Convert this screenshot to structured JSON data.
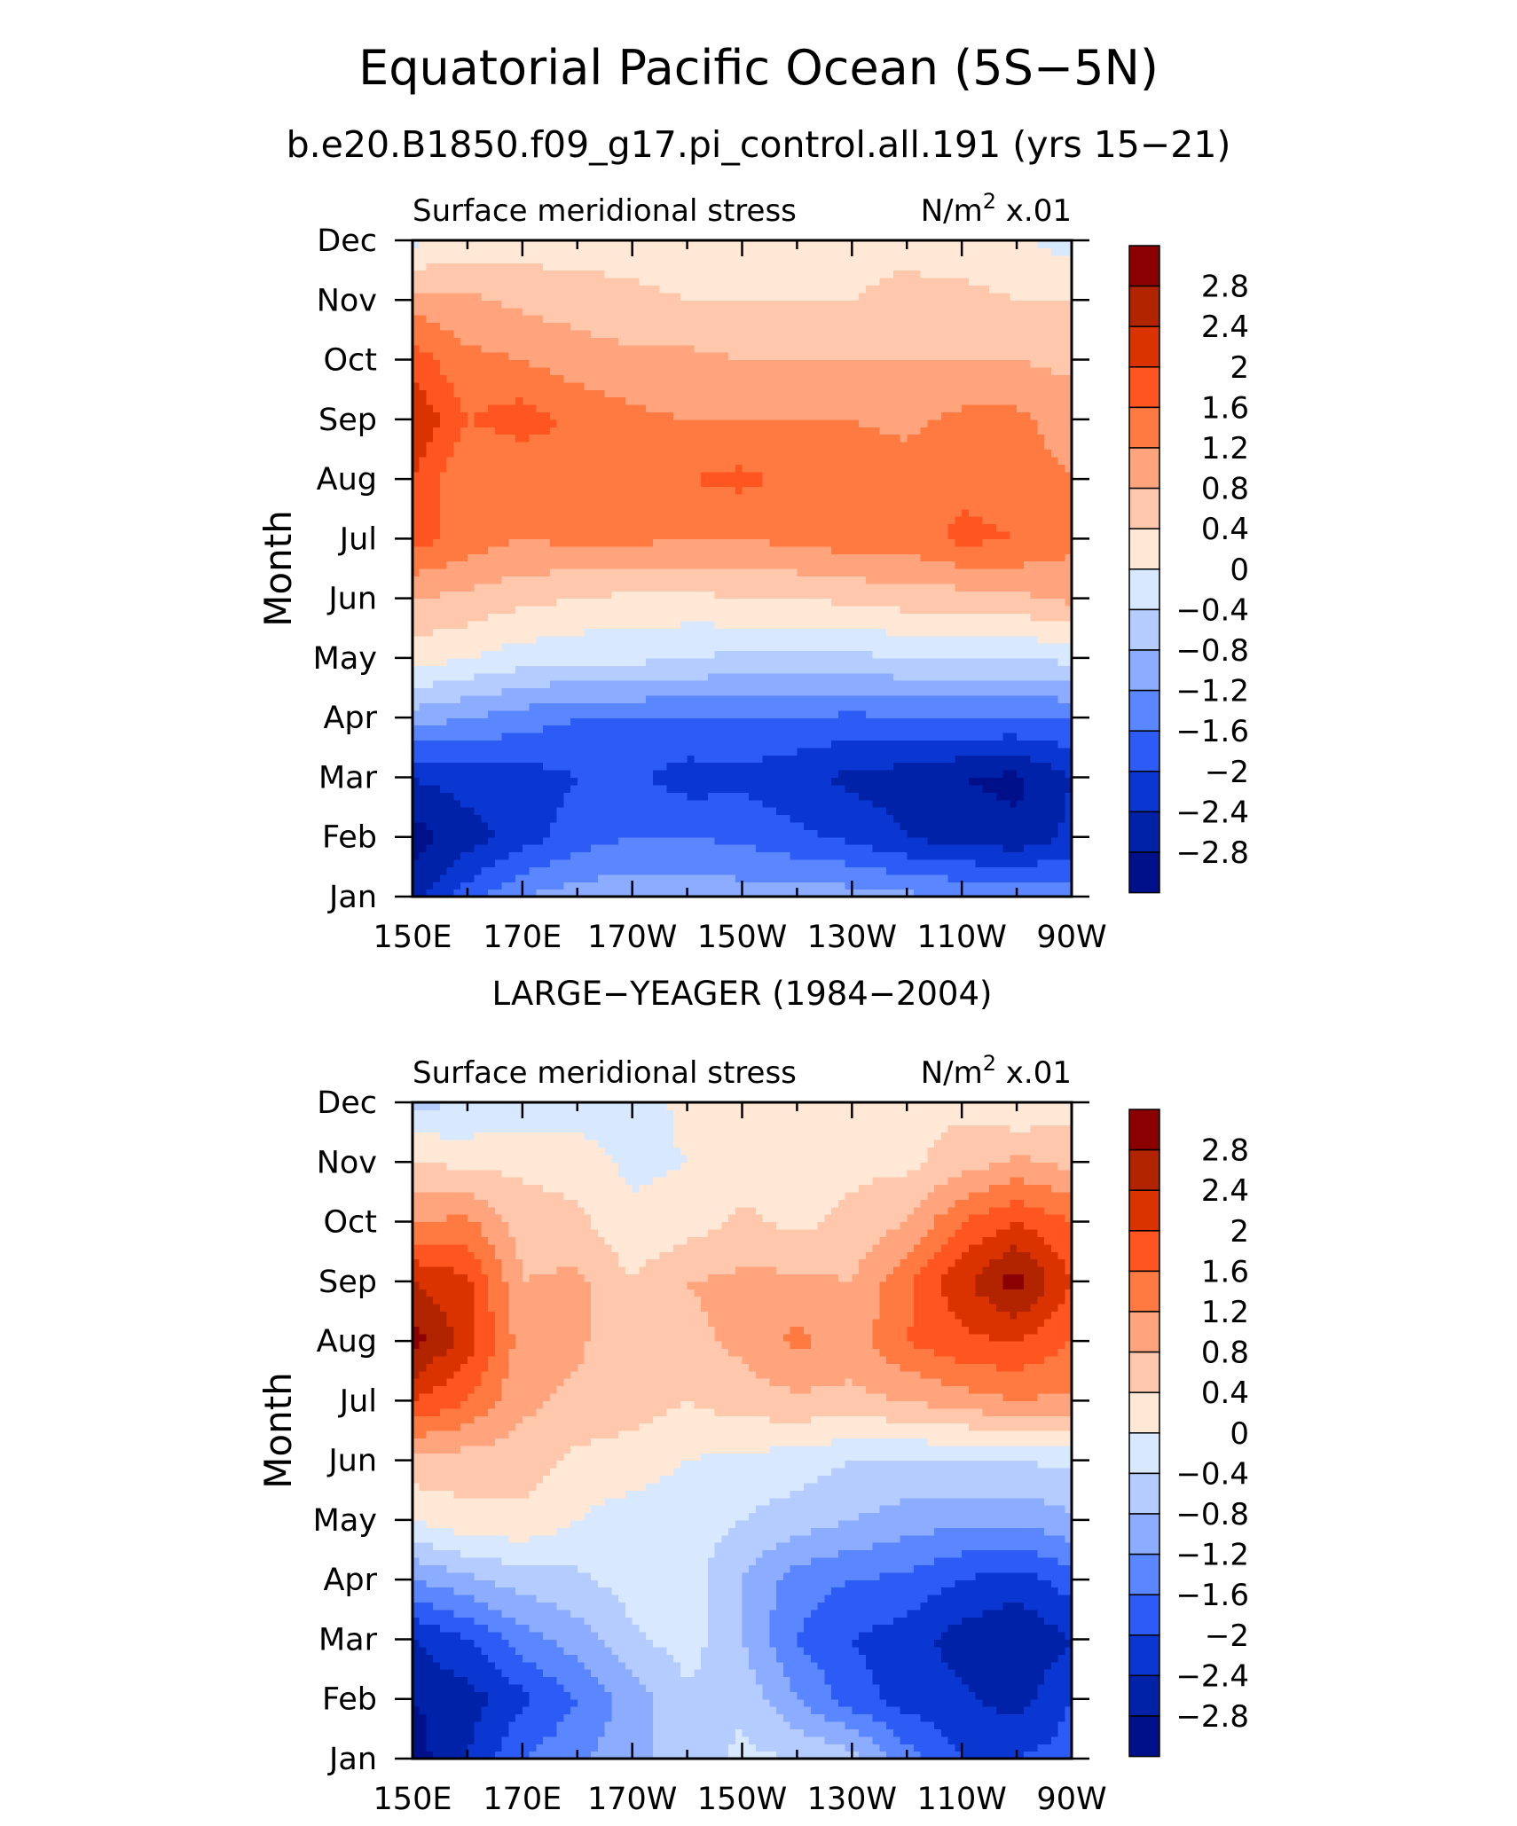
{
  "figure": {
    "title": "Equatorial Pacific Ocean (5S−5N)",
    "subtitle": "b.e20.B1850.f09_g17.pi_control.all.191 (yrs 15−21)"
  },
  "colorbar": {
    "labels": [
      "2.8",
      "2.4",
      "2",
      "1.6",
      "1.2",
      "0.8",
      "0.4",
      "0",
      "−0.4",
      "−0.8",
      "−1.2",
      "−1.6",
      "−2",
      "−2.4",
      "−2.8"
    ],
    "colors": [
      "#8b0000",
      "#b22400",
      "#db3300",
      "#ff5520",
      "#ff7a40",
      "#ffa47c",
      "#ffc8ac",
      "#ffe8d6",
      "#d8e8ff",
      "#b4ccff",
      "#8cacff",
      "#5a86ff",
      "#2c5cf5",
      "#0a36d2",
      "#0022a8",
      "#00108a"
    ]
  },
  "chart_data": [
    {
      "type": "heatmap",
      "panel_title": "",
      "left_label": "Surface meridional stress",
      "right_label_prefix": "N/m",
      "right_label_sup": "2",
      "right_label_suffix": " x.01",
      "ylabel": "Month",
      "x_ticks": [
        "150E",
        "170E",
        "170W",
        "150W",
        "130W",
        "110W",
        "90W"
      ],
      "y_ticks": [
        "Jan",
        "Feb",
        "Mar",
        "Apr",
        "May",
        "Jun",
        "Jul",
        "Aug",
        "Sep",
        "Oct",
        "Nov",
        "Dec"
      ],
      "x_lon_east": [
        150,
        160,
        170,
        180,
        190,
        200,
        210,
        220,
        230,
        240,
        250,
        260,
        270
      ],
      "values": [
        [
          -2.6,
          -1.8,
          -1.2,
          -1.0,
          -0.9,
          -0.9,
          -1.0,
          -1.0,
          -1.0,
          -1.1,
          -1.2,
          -1.2,
          -1.4
        ],
        [
          -3.0,
          -2.6,
          -2.2,
          -1.8,
          -1.6,
          -1.6,
          -1.7,
          -1.9,
          -2.1,
          -2.4,
          -2.6,
          -2.7,
          -2.3
        ],
        [
          -2.4,
          -2.2,
          -2.2,
          -2.0,
          -1.9,
          -2.2,
          -2.1,
          -2.3,
          -2.5,
          -2.6,
          -2.8,
          -2.9,
          -2.4
        ],
        [
          -1.0,
          -1.2,
          -1.4,
          -1.6,
          -1.6,
          -1.6,
          -1.6,
          -1.6,
          -1.7,
          -1.6,
          -1.6,
          -1.6,
          -1.6
        ],
        [
          0.2,
          0.0,
          -0.2,
          -0.3,
          -0.3,
          -0.4,
          -0.5,
          -0.5,
          -0.5,
          -0.4,
          -0.4,
          -0.4,
          -0.3
        ],
        [
          0.8,
          0.7,
          0.5,
          0.4,
          0.3,
          0.3,
          0.4,
          0.4,
          0.5,
          0.6,
          0.6,
          0.7,
          0.9
        ],
        [
          1.8,
          1.4,
          1.2,
          1.3,
          1.3,
          1.2,
          1.2,
          1.3,
          1.4,
          1.4,
          1.7,
          1.6,
          1.3
        ],
        [
          2.0,
          1.2,
          1.2,
          1.5,
          1.5,
          1.6,
          1.7,
          1.5,
          1.4,
          1.4,
          1.5,
          1.4,
          1.2
        ],
        [
          2.4,
          1.6,
          1.8,
          1.5,
          1.3,
          1.2,
          1.2,
          1.2,
          1.2,
          1.1,
          1.3,
          1.3,
          1.0
        ],
        [
          1.8,
          1.3,
          1.2,
          1.0,
          0.9,
          0.9,
          0.8,
          0.8,
          0.8,
          0.8,
          0.8,
          0.8,
          0.7
        ],
        [
          1.0,
          0.9,
          0.7,
          0.6,
          0.5,
          0.4,
          0.4,
          0.4,
          0.4,
          0.5,
          0.5,
          0.4,
          0.4
        ],
        [
          -0.1,
          0.1,
          0.2,
          0.2,
          0.2,
          0.2,
          0.2,
          0.3,
          0.3,
          0.3,
          0.2,
          0.1,
          -0.2
        ]
      ]
    },
    {
      "type": "heatmap",
      "panel_title": "LARGE−YEAGER (1984−2004)",
      "left_label": "Surface meridional stress",
      "right_label_prefix": "N/m",
      "right_label_sup": "2",
      "right_label_suffix": " x.01",
      "ylabel": "Month",
      "x_ticks": [
        "150E",
        "170E",
        "170W",
        "150W",
        "130W",
        "110W",
        "90W"
      ],
      "y_ticks": [
        "Jan",
        "Feb",
        "Mar",
        "Apr",
        "May",
        "Jun",
        "Jul",
        "Aug",
        "Sep",
        "Oct",
        "Nov",
        "Dec"
      ],
      "x_lon_east": [
        150,
        160,
        170,
        180,
        190,
        200,
        210,
        220,
        230,
        240,
        250,
        260,
        270
      ],
      "values": [
        [
          -3.0,
          -2.4,
          -1.6,
          -1.3,
          -0.9,
          -0.6,
          -0.3,
          -0.4,
          -0.6,
          -1.4,
          -2.0,
          -2.0,
          -1.8
        ],
        [
          -2.8,
          -2.6,
          -2.1,
          -1.6,
          -1.0,
          -0.5,
          -0.5,
          -1.2,
          -1.8,
          -2.2,
          -2.3,
          -2.6,
          -2.0
        ],
        [
          -2.4,
          -2.0,
          -1.4,
          -1.0,
          -0.5,
          -0.2,
          -0.8,
          -1.6,
          -2.0,
          -2.2,
          -2.6,
          -2.8,
          -2.4
        ],
        [
          -1.2,
          -0.9,
          -0.6,
          -0.5,
          -0.2,
          -0.2,
          -0.8,
          -1.4,
          -1.6,
          -1.7,
          -2.0,
          -2.2,
          -1.8
        ],
        [
          0.0,
          0.3,
          0.3,
          0.0,
          -0.2,
          -0.2,
          -0.4,
          -0.6,
          -0.8,
          -1.0,
          -1.1,
          -1.1,
          -0.9
        ],
        [
          0.7,
          0.6,
          0.6,
          0.3,
          0.2,
          0.0,
          -0.1,
          -0.2,
          -0.4,
          -0.4,
          -0.4,
          -0.4,
          -0.3
        ],
        [
          2.0,
          1.6,
          0.9,
          0.7,
          0.6,
          0.4,
          0.6,
          0.7,
          0.7,
          0.8,
          1.0,
          1.2,
          1.1
        ],
        [
          3.0,
          2.2,
          1.0,
          0.9,
          0.4,
          0.7,
          0.9,
          1.3,
          1.0,
          1.6,
          1.9,
          2.0,
          1.6
        ],
        [
          2.4,
          2.1,
          0.8,
          0.9,
          0.4,
          0.8,
          0.9,
          0.9,
          0.8,
          1.5,
          2.3,
          3.0,
          2.0
        ],
        [
          1.2,
          1.3,
          0.6,
          0.5,
          0.1,
          0.2,
          0.5,
          0.3,
          0.5,
          0.8,
          1.6,
          2.0,
          1.6
        ],
        [
          0.4,
          0.3,
          0.3,
          0.2,
          -0.1,
          0.0,
          0.2,
          0.1,
          0.3,
          0.3,
          0.6,
          0.9,
          0.7
        ],
        [
          -0.5,
          -0.4,
          -0.3,
          -0.2,
          -0.2,
          0.1,
          0.2,
          0.2,
          0.2,
          0.3,
          0.3,
          0.0,
          0.2
        ]
      ]
    }
  ]
}
